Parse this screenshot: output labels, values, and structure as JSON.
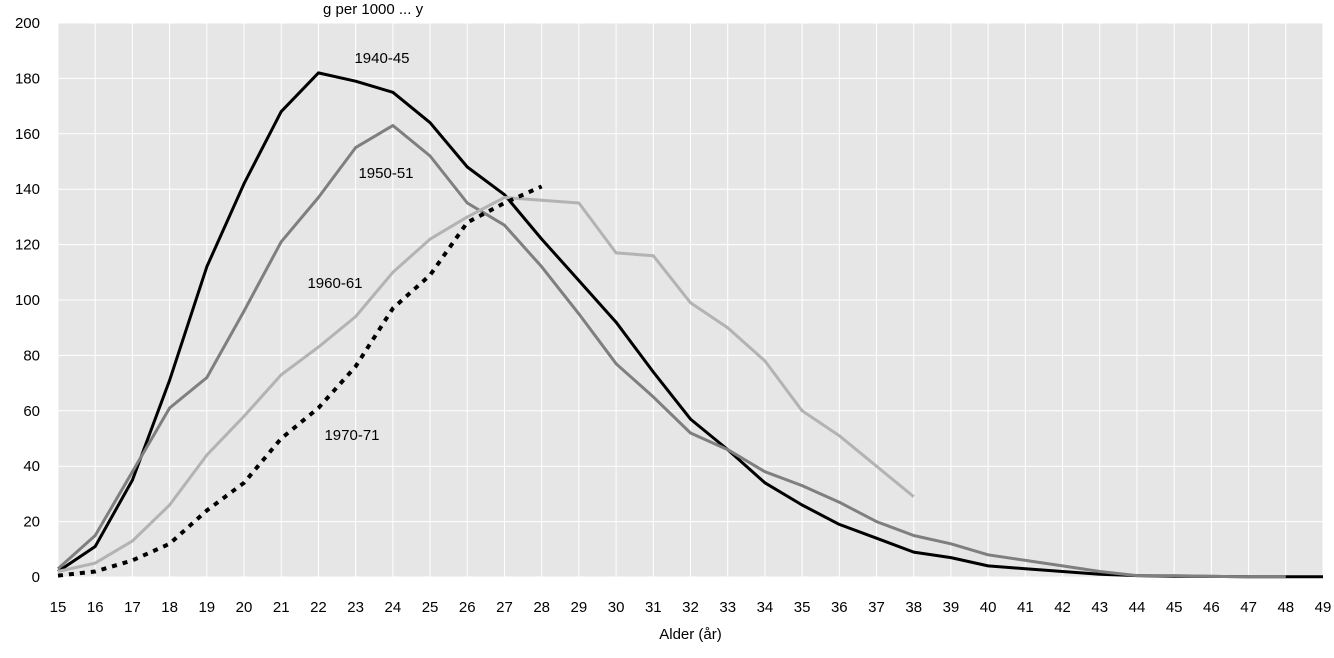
{
  "chart_data": {
    "type": "line",
    "top_text": "g per 1000 ... y",
    "xlabel": "Alder (år)",
    "ylabel": "",
    "xlim": [
      15,
      49
    ],
    "ylim": [
      0,
      200
    ],
    "x_ticks": [
      15,
      16,
      17,
      18,
      19,
      20,
      21,
      22,
      23,
      24,
      25,
      26,
      27,
      28,
      29,
      30,
      31,
      32,
      33,
      34,
      35,
      36,
      37,
      38,
      39,
      40,
      41,
      42,
      43,
      44,
      45,
      46,
      47,
      48,
      49
    ],
    "y_ticks": [
      0,
      20,
      40,
      60,
      80,
      100,
      120,
      140,
      160,
      180,
      200
    ],
    "grid": "on",
    "background": "#e6e6e6",
    "series": [
      {
        "name": "1940-45",
        "color": "#000000",
        "style": "solid",
        "x": [
          15,
          16,
          17,
          18,
          19,
          20,
          21,
          22,
          23,
          24,
          25,
          26,
          27,
          28,
          29,
          30,
          31,
          32,
          33,
          34,
          35,
          36,
          37,
          38,
          39,
          40,
          41,
          42,
          43,
          44,
          45,
          46,
          47,
          48,
          49
        ],
        "values": [
          2,
          11,
          35,
          71,
          112,
          142,
          168,
          182,
          179,
          175,
          164,
          148,
          138,
          122,
          107,
          92,
          74,
          57,
          46,
          34,
          26,
          19,
          14,
          9,
          7,
          4,
          3,
          2,
          1,
          0.5,
          0.3,
          0.2,
          0.1,
          0.1,
          0.1
        ]
      },
      {
        "name": "1950-51",
        "color": "#7f7f7f",
        "style": "solid",
        "x": [
          15,
          16,
          17,
          18,
          19,
          20,
          21,
          22,
          23,
          24,
          25,
          26,
          27,
          28,
          29,
          30,
          31,
          32,
          33,
          34,
          35,
          36,
          37,
          38,
          39,
          40,
          41,
          42,
          43,
          44,
          45,
          46,
          47,
          48
        ],
        "values": [
          3,
          15,
          38,
          61,
          72,
          96,
          121,
          137,
          155,
          163,
          152,
          135,
          127,
          112,
          95,
          77,
          65,
          52,
          46,
          38,
          33,
          27,
          20,
          15,
          12,
          8,
          6,
          4,
          2,
          0.5,
          0.5,
          0.2,
          0.1,
          0.1
        ]
      },
      {
        "name": "1960-61",
        "color": "#b3b3b3",
        "style": "solid",
        "x": [
          15,
          16,
          17,
          18,
          19,
          20,
          21,
          22,
          23,
          24,
          25,
          26,
          27,
          28,
          29,
          30,
          31,
          32,
          33,
          34,
          35,
          36,
          37,
          38
        ],
        "values": [
          2,
          5,
          13,
          26,
          44,
          58,
          73,
          83,
          94,
          110,
          122,
          130,
          137,
          136,
          135,
          117,
          116,
          99,
          90,
          78,
          60,
          51,
          40,
          29
        ]
      },
      {
        "name": "1970-71",
        "color": "#000000",
        "style": "dotted",
        "x": [
          15,
          16,
          17,
          18,
          19,
          20,
          21,
          22,
          23,
          24,
          25,
          26,
          27,
          28
        ],
        "values": [
          0.5,
          2,
          6,
          12,
          24,
          34,
          50,
          61,
          76,
          97,
          109,
          128,
          135,
          141
        ]
      }
    ]
  }
}
